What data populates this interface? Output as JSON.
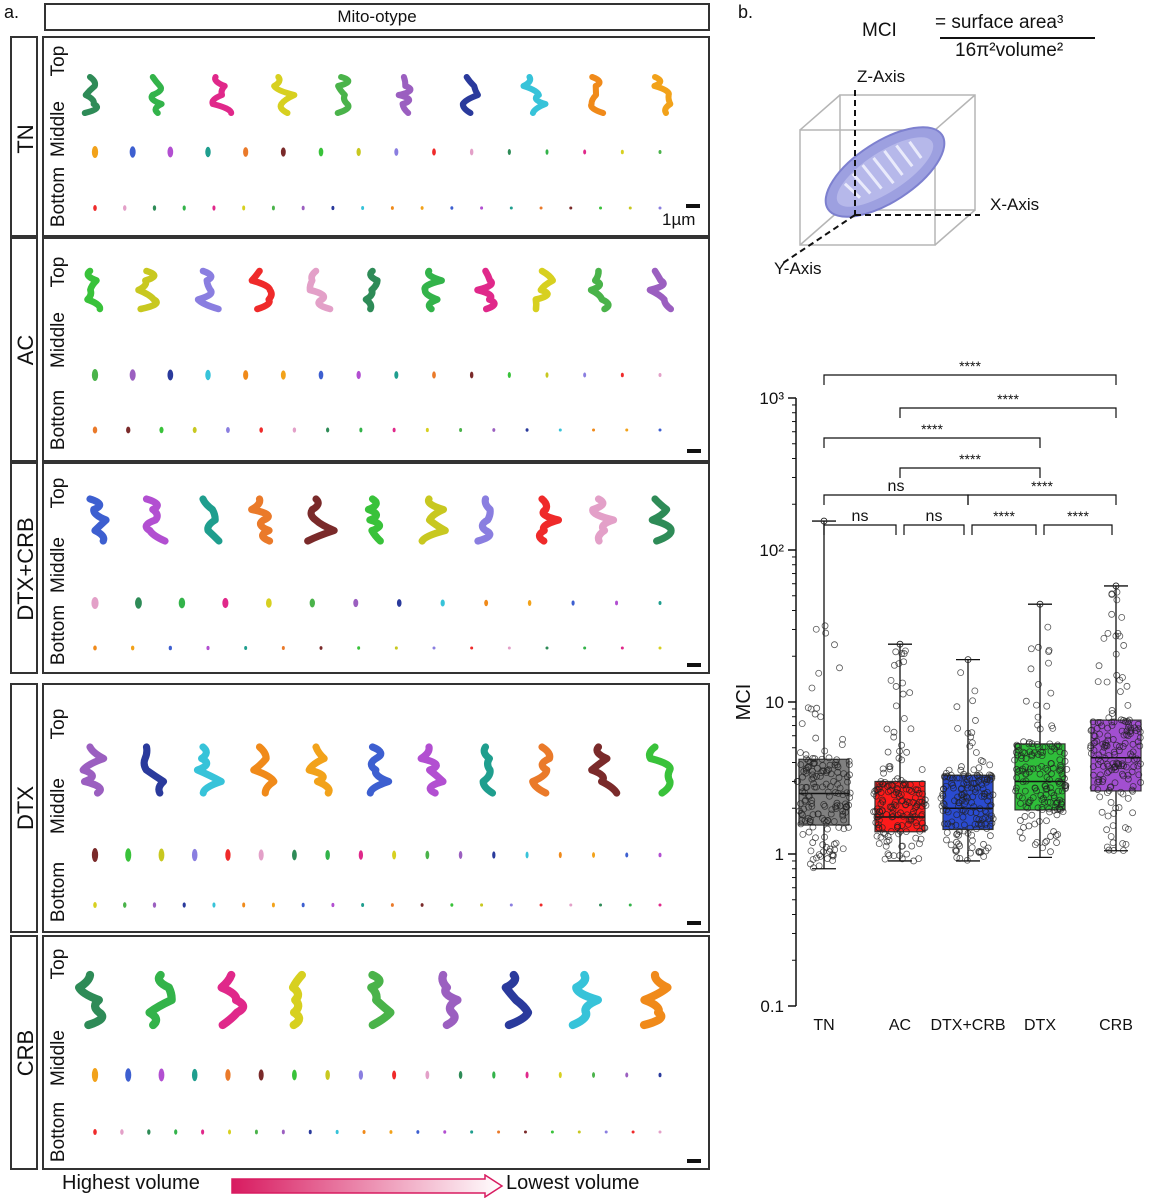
{
  "panel_a_label": "a.",
  "panel_b_label": "b.",
  "header": "Mito-otype",
  "groups": [
    {
      "name": "TN",
      "rows": [
        "Top",
        "Middle",
        "Bottom"
      ]
    },
    {
      "name": "AC",
      "rows": [
        "Top",
        "Middle",
        "Bottom"
      ]
    },
    {
      "name": "DTX+CRB",
      "rows": [
        "Top",
        "Middle",
        "Bottom"
      ]
    },
    {
      "name": "DTX",
      "rows": [
        "Top",
        "Middle",
        "Bottom"
      ]
    },
    {
      "name": "CRB",
      "rows": [
        "Top",
        "Middle",
        "Bottom"
      ]
    }
  ],
  "scale_label": "1µm",
  "volume_axis": {
    "left": "Highest volume",
    "right": "Lowest volume"
  },
  "formula": {
    "lhs": "MCI",
    "numerator": "= surface area³",
    "denominator": "16π²volume²"
  },
  "diagram_axes": {
    "z": "Z-Axis",
    "x": "X-Axis",
    "y": "Y-Axis"
  },
  "colors": {
    "TN": "#808080",
    "AC": "#ff1a1a",
    "DTX+CRB": "#2a4bd1",
    "DTX": "#2fbf3a",
    "CRB": "#a24fd1"
  },
  "chart_data": {
    "type": "box",
    "ylabel": "MCI",
    "yscale": "log",
    "ylim": [
      0.1,
      1000
    ],
    "yticks": [
      "0.1",
      "1",
      "10",
      "10²",
      "10³"
    ],
    "categories": [
      "TN",
      "AC",
      "DTX+CRB",
      "DTX",
      "CRB"
    ],
    "boxes": [
      {
        "name": "TN",
        "min": 0.8,
        "q1": 1.55,
        "median": 2.5,
        "q3": 4.2,
        "max": 155
      },
      {
        "name": "AC",
        "min": 0.9,
        "q1": 1.4,
        "median": 1.75,
        "q3": 3.0,
        "max": 24
      },
      {
        "name": "DTX+CRB",
        "min": 0.9,
        "q1": 1.45,
        "median": 2.0,
        "q3": 3.3,
        "max": 19
      },
      {
        "name": "DTX",
        "min": 0.95,
        "q1": 1.95,
        "median": 3.0,
        "q3": 5.3,
        "max": 44
      },
      {
        "name": "CRB",
        "min": 1.05,
        "q1": 2.6,
        "median": 4.3,
        "q3": 7.6,
        "max": 58
      }
    ],
    "comparisons": [
      {
        "a": "TN",
        "b": "AC",
        "label": "ns"
      },
      {
        "a": "AC",
        "b": "DTX+CRB",
        "label": "ns"
      },
      {
        "a": "DTX+CRB",
        "b": "DTX",
        "label": "****"
      },
      {
        "a": "DTX",
        "b": "CRB",
        "label": "****"
      },
      {
        "a": "TN",
        "b": "DTX+CRB",
        "label": "ns"
      },
      {
        "a": "DTX+CRB",
        "b": "CRB",
        "label": "****"
      },
      {
        "a": "AC",
        "b": "DTX",
        "label": "****"
      },
      {
        "a": "TN",
        "b": "DTX",
        "label": "****"
      },
      {
        "a": "AC",
        "b": "CRB",
        "label": "****"
      },
      {
        "a": "TN",
        "b": "CRB",
        "label": "****"
      }
    ]
  }
}
